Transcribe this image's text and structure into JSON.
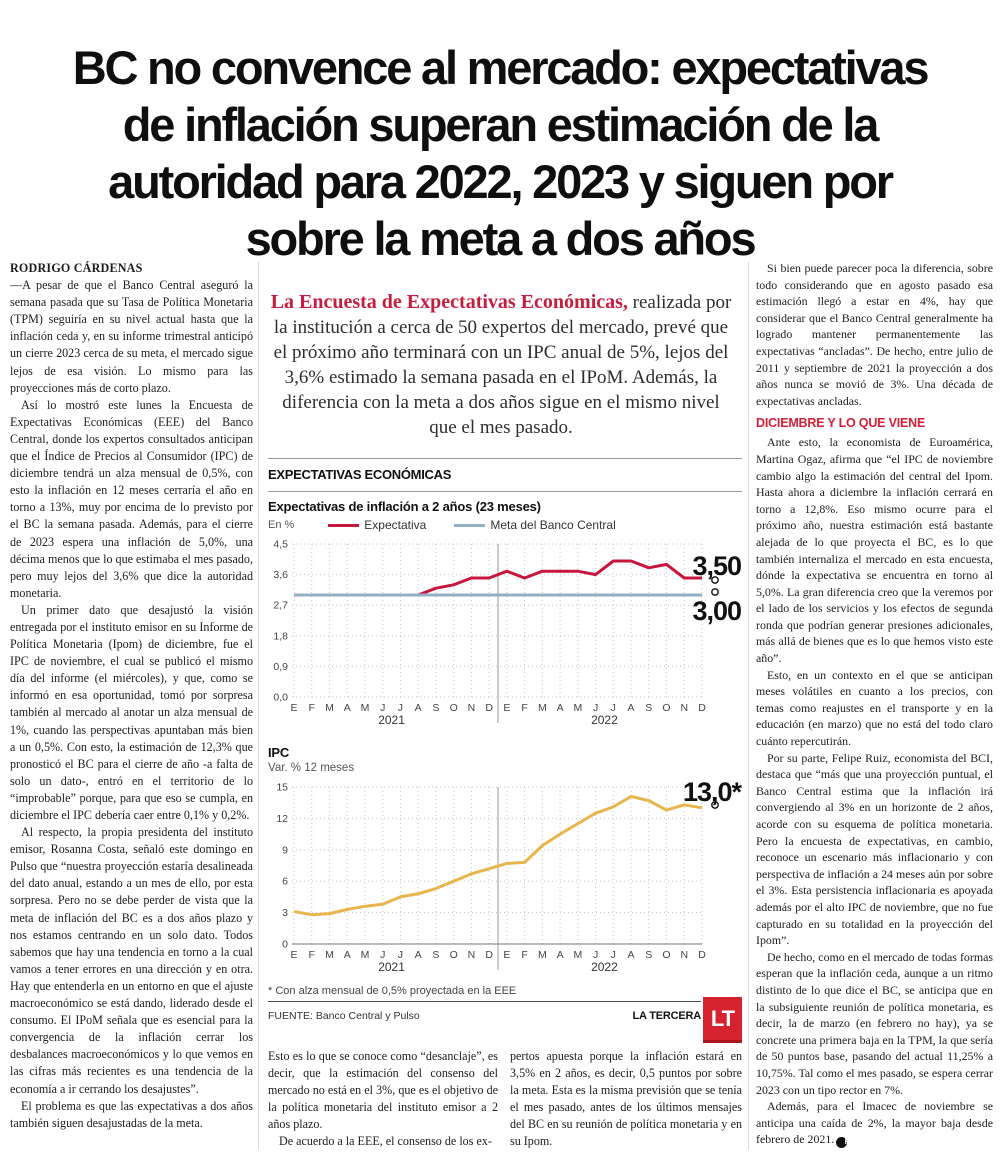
{
  "headline": {
    "lines": [
      "BC no convence al mercado: expectativas",
      "de inflación superan estimación de la",
      "autoridad para 2022, 2023 y siguen por",
      "sobre la meta a dos años"
    ]
  },
  "byline": "RODRIGO CÁRDENAS",
  "left_column": {
    "paragraphs": [
      "—A pesar de que el Banco Central aseguró la semana pasada que su Tasa de Política Monetaria (TPM) seguiría en su nivel actual hasta que la inflación ceda y, en su informe trimestral anticipó un cierre 2023 cerca de su meta, el mercado sigue lejos de esa visión. Lo mismo para las proyecciones más de corto plazo.",
      "Así lo mostró este lunes la Encuesta de Expectativas Económicas (EEE) del Banco Central, donde los expertos consultados anticipan que el Índice de Precios al Consumidor (IPC) de diciembre tendrá un alza mensual de 0,5%, con esto la inflación en 12 meses cerraría el año en torno a 13%, muy por encima de lo previsto por el BC la semana pasada. Además, para el cierre de 2023 espera una inflación de 5,0%, una décima menos que lo que estimaba el mes pasado, pero muy lejos del 3,6% que dice la autoridad monetaria.",
      "Un primer dato que desajustó la visión entregada por el instituto emisor en su Informe de Política Monetaria (Ipom) de diciembre, fue el IPC de noviembre, el cual se publicó el mismo día del informe (el miércoles), y que, como se informó en esa oportunidad, tomó por sorpresa también al mercado al anotar un alza mensual de 1%, cuando las perspectivas apuntaban más bien a un 0,5%. Con esto, la estimación de 12,3% que pronosticó el BC para el cierre de año -a falta de solo un dato-, entró en el territorio de lo “improbable” porque, para que eso se cumpla, en diciembre el IPC debería caer entre 0,1% y 0,2%.",
      "Al respecto, la propia presidenta del instituto emisor, Rosanna Costa, señaló este domingo en Pulso que “nuestra proyección estaría desalineada del dato anual, estando a un mes de ello, por esta sorpresa. Pero no se debe perder de vista que la meta de inflación del BC es a dos años plazo y nos estamos centrando en un solo dato. Todos sabemos que hay una tendencia en torno a la cual vamos a tener errores en una dirección y en otra. Hay que entenderla en un entorno en que el ajuste macroeconómico se está dando, liderado desde el consumo. El IPoM señala que es esencial para la convergencia de la inflación cerrar los desbalances macroeconómicos y lo que vemos en las cifras más recientes es una tendencia de la economía a ir cerrando los desajustes”.",
      "El problema es que las expectativas a dos años también siguen desajustadas de la meta."
    ]
  },
  "lede": {
    "highlight": "La Encuesta de Expectativas Económicas,",
    "rest": " realizada por la institución a cerca de 50 expertos del mercado, prevé que el próximo año terminará con un IPC anual de 5%, lejos del 3,6% estimado la semana pasada en el IPoM. Además, la diferencia con la meta a dos años sigue en el mismo nivel que el mes pasado."
  },
  "graphic": {
    "section_title": "EXPECTATIVAS ECONÓMICAS",
    "footnote": "* Con alza mensual de 0,5% proyectada en la EEE",
    "source": "FUENTE: Banco Central y Pulso",
    "brand": "LA TERCERA",
    "logo_text": "LT"
  },
  "chart_data": [
    {
      "type": "line",
      "title": "Expectativas de inflación a 2 años (23 meses)",
      "ylabel": "En %",
      "x": [
        "E",
        "F",
        "M",
        "A",
        "M",
        "J",
        "J",
        "A",
        "S",
        "O",
        "N",
        "D",
        "E",
        "F",
        "M",
        "A",
        "M",
        "J",
        "J",
        "A",
        "S",
        "O",
        "N",
        "D"
      ],
      "year_labels": [
        "2021",
        "2022"
      ],
      "year_break": 12,
      "ylim": [
        0,
        4.5
      ],
      "yticks": [
        4.5,
        3.6,
        2.7,
        1.8,
        0.9,
        0.0
      ],
      "ytick_labels": [
        "4,5",
        "3,6",
        "2,7",
        "1,8",
        "0,9",
        "0,0"
      ],
      "grid": true,
      "legend_position": "top",
      "series": [
        {
          "name": "Expectativa",
          "color": "#c8173c",
          "values": [
            3.0,
            3.0,
            3.0,
            3.0,
            3.0,
            3.0,
            3.0,
            3.0,
            3.2,
            3.3,
            3.5,
            3.5,
            3.7,
            3.5,
            3.7,
            3.7,
            3.7,
            3.6,
            4.0,
            4.0,
            3.8,
            3.9,
            3.5,
            3.5
          ],
          "end_label": "3,50"
        },
        {
          "name": "Meta del Banco Central",
          "color": "#92afc3",
          "values": [
            3.0,
            3.0,
            3.0,
            3.0,
            3.0,
            3.0,
            3.0,
            3.0,
            3.0,
            3.0,
            3.0,
            3.0,
            3.0,
            3.0,
            3.0,
            3.0,
            3.0,
            3.0,
            3.0,
            3.0,
            3.0,
            3.0,
            3.0,
            3.0
          ],
          "end_label": "3,00"
        }
      ]
    },
    {
      "type": "line",
      "title": "IPC",
      "ylabel": "Var. % 12 meses",
      "x": [
        "E",
        "F",
        "M",
        "A",
        "M",
        "J",
        "J",
        "A",
        "S",
        "O",
        "N",
        "D",
        "E",
        "F",
        "M",
        "A",
        "M",
        "J",
        "J",
        "A",
        "S",
        "O",
        "N",
        "D"
      ],
      "year_labels": [
        "2021",
        "2022"
      ],
      "year_break": 12,
      "ylim": [
        0,
        15
      ],
      "yticks": [
        15,
        12,
        9,
        6,
        3,
        0
      ],
      "ytick_labels": [
        "15",
        "12",
        "9",
        "6",
        "3",
        "0"
      ],
      "grid": true,
      "series": [
        {
          "name": "IPC",
          "color": "#e7b54b",
          "values": [
            3.1,
            2.8,
            2.9,
            3.3,
            3.6,
            3.8,
            4.5,
            4.8,
            5.3,
            6.0,
            6.7,
            7.2,
            7.7,
            7.8,
            9.4,
            10.5,
            11.5,
            12.5,
            13.1,
            14.1,
            13.7,
            12.8,
            13.3,
            13.0
          ],
          "end_label": "13,0*"
        }
      ]
    }
  ],
  "bottom_columns": {
    "col_a": [
      "Esto es lo que se conoce como “desanclaje”, es decir, que la estimación del consenso del mercado no está en el 3%, que es el objetivo de la política monetaria del instituto emisor a 2 años plazo.",
      "De acuerdo a la EEE, el consenso de los ex-"
    ],
    "col_b": [
      "pertos apuesta porque la inflación estará en 3,5% en 2 años, es decir, 0,5 puntos por sobre la meta. Esta es la misma previsión que se tenía el mes pasado, antes de los últimos mensajes del BC en su reunión de política monetaria y en su Ipom."
    ]
  },
  "right_column": {
    "intro": [
      "Si bien puede parecer poca la diferencia, sobre todo considerando que en agosto pasado esa estimación llegó a estar en 4%, hay que considerar que el Banco Central generalmente ha logrado mantener permanentemente las expectativas “ancladas”. De hecho, entre julio de 2011 y septiembre de 2021 la proyección a dos años nunca se movió de 3%. Una década de expectativas ancladas."
    ],
    "subhead": "DICIEMBRE Y LO QUE VIENE",
    "paragraphs": [
      "Ante esto, la economista de Euroamérica, Martina Ogaz, afirma que “el IPC de noviembre cambio algo la estimación del central del Ipom. Hasta ahora a diciembre la inflación cerrará en torno a 12,8%. Eso mismo ocurre para el próximo año, nuestra estimación está bastante alejada de lo que proyecta el BC, es lo que también internaliza el mercado en esta encuesta, dónde la expectativa se encuentra en torno al 5,0%. La gran diferencia creo que la veremos por el lado de los servicios y los efectos de segunda ronda que podrían generar presiones adicionales, más allá de bienes que es lo que hemos visto este año”.",
      "Esto, en un contexto en el que se anticipan meses volátiles en cuanto a los precios, con temas como reajustes en el transporte y en la educación (en marzo) que no está del todo claro cuánto repercutirán.",
      "Por su parte, Felipe Ruiz, economista del BCI, destaca que “más que una proyección puntual, el Banco Central estima que la inflación irá convergiendo al 3% en un horizonte de 2 años, acorde con su esquema de política monetaria. Pero la encuesta de expectativas, en cambio, reconoce un escenario más inflacionario y con perspectiva de inflación a 24 meses aún por sobre el 3%. Esta persistencia inflacionaria es apoyada además por el alto IPC de noviembre, que no fue capturado en su totalidad en la proyección del Ipom”.",
      "De hecho, como en el mercado de todas formas esperan que la inflación ceda, aunque a un ritmo distinto de lo que dice el BC, se anticipa que en la subsiguiente reunión de política monetaria, es decir, la de marzo (en febrero no hay), ya se concrete una primera baja en la TPM, la que sería de 50 puntos base, pasando del actual 11,25% a 10,75%. Tal como el mes pasado, se espera cerrar 2023 con un tipo rector en 7%."
    ],
    "last_paragraph": "Además, para el Imacec de noviembre se anticipa una caída de 2%, la mayor baja desde febrero de 2021.",
    "end_mark": "P"
  },
  "colors": {
    "accent_red": "#d12038",
    "chart_red": "#c8173c",
    "target_blue": "#92afc3",
    "ipc_yellow": "#e7b54b",
    "brand_red": "#d6212e"
  }
}
